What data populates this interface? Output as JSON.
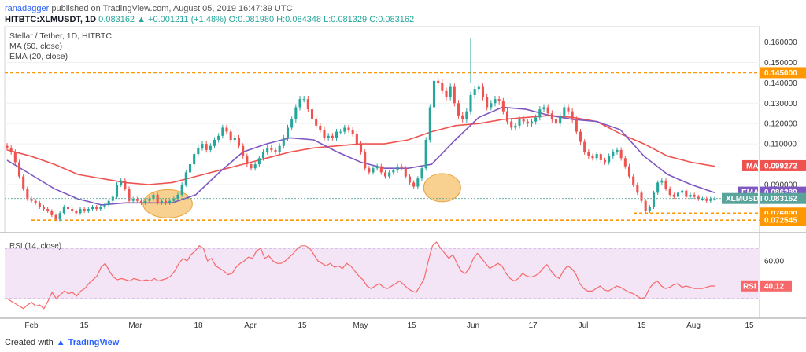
{
  "header": {
    "author": "ranadagger",
    "published": "published on TradingView.com, August 05, 2019 16:47:39 UTC",
    "symbol": "HITBTC:XLMUSDT, 1D",
    "change": "0.083162 ▲ +0.001211 (+1.48%)",
    "ohlc": "O:0.081980 H:0.084348 L:0.081329 C:0.083162"
  },
  "legend": {
    "title": "Stellar / Tether, 1D, HITBTC",
    "ma": "MA (50, close)",
    "ema": "EMA (20, close)"
  },
  "footer": {
    "created_with": "Created with",
    "brand": "TradingView"
  },
  "colors": {
    "up": "#26a69a",
    "down": "#ef5350",
    "ma": "#ef5350",
    "ema": "#7e57c2",
    "rsi_line": "#f7686a",
    "rsi_band": "#f3e5f5",
    "level": "#ff9800",
    "price": "#5aa39a"
  },
  "chart_data": [
    {
      "type": "candlestick",
      "title": "Stellar / Tether, 1D, HITBTC",
      "y_axis": {
        "ticks": [
          "0.160000",
          "0.150000",
          "0.140000",
          "0.130000",
          "0.120000",
          "0.110000",
          "0.090000"
        ],
        "ylim": [
          0.068,
          0.166
        ]
      },
      "x_axis": {
        "labels": [
          "Feb",
          "15",
          "Mar",
          "18",
          "Apr",
          "15",
          "May",
          "15",
          "Jun",
          "17",
          "Jul",
          "15",
          "Aug",
          "15"
        ]
      },
      "price_labels": {
        "resistance": "0.145000",
        "ma": "0.099272",
        "ema": "0.086289",
        "last": "0.083162",
        "symbol": "XLMUSDT",
        "support1": "0.076000",
        "support2": "0.072545",
        "ma_tag": "MA",
        "ema_tag": "EMA"
      },
      "levels": [
        0.145,
        0.076,
        0.072545
      ],
      "highlight_zones": [
        {
          "from_date": "2019-02-26",
          "to_date": "2019-03-07",
          "value": 0.0806
        },
        {
          "from_date": "2019-05-06",
          "to_date": "2019-05-12",
          "value": 0.0885
        }
      ],
      "start_date": "2019-01-22",
      "closes": [
        0.108,
        0.106,
        0.101,
        0.094,
        0.088,
        0.083,
        0.082,
        0.081,
        0.079,
        0.078,
        0.077,
        0.075,
        0.073,
        0.076,
        0.079,
        0.078,
        0.077,
        0.076,
        0.078,
        0.077,
        0.078,
        0.079,
        0.078,
        0.079,
        0.08,
        0.082,
        0.084,
        0.09,
        0.092,
        0.088,
        0.082,
        0.083,
        0.082,
        0.081,
        0.082,
        0.083,
        0.085,
        0.081,
        0.082,
        0.081,
        0.082,
        0.083,
        0.085,
        0.09,
        0.096,
        0.1,
        0.105,
        0.108,
        0.11,
        0.107,
        0.109,
        0.112,
        0.114,
        0.118,
        0.116,
        0.112,
        0.113,
        0.109,
        0.104,
        0.1,
        0.098,
        0.1,
        0.103,
        0.106,
        0.108,
        0.107,
        0.106,
        0.109,
        0.113,
        0.118,
        0.122,
        0.128,
        0.132,
        0.132,
        0.127,
        0.122,
        0.119,
        0.117,
        0.113,
        0.114,
        0.113,
        0.116,
        0.116,
        0.118,
        0.117,
        0.115,
        0.11,
        0.106,
        0.098,
        0.096,
        0.098,
        0.099,
        0.096,
        0.094,
        0.096,
        0.097,
        0.099,
        0.098,
        0.094,
        0.091,
        0.089,
        0.093,
        0.098,
        0.112,
        0.128,
        0.141,
        0.14,
        0.136,
        0.133,
        0.138,
        0.13,
        0.124,
        0.122,
        0.126,
        0.134,
        0.137,
        0.138,
        0.133,
        0.128,
        0.13,
        0.132,
        0.131,
        0.126,
        0.121,
        0.118,
        0.119,
        0.122,
        0.121,
        0.12,
        0.121,
        0.123,
        0.127,
        0.128,
        0.125,
        0.122,
        0.12,
        0.124,
        0.128,
        0.126,
        0.122,
        0.116,
        0.111,
        0.106,
        0.104,
        0.103,
        0.105,
        0.102,
        0.101,
        0.104,
        0.106,
        0.107,
        0.103,
        0.099,
        0.094,
        0.09,
        0.086,
        0.082,
        0.077,
        0.079,
        0.086,
        0.091,
        0.092,
        0.088,
        0.085,
        0.084,
        0.086,
        0.087,
        0.084,
        0.085,
        0.084,
        0.083,
        0.083,
        0.082,
        0.083,
        0.083
      ],
      "ma50": [
        0.107,
        0.104,
        0.1,
        0.095,
        0.093,
        0.091,
        0.09,
        0.091,
        0.094,
        0.097,
        0.1,
        0.103,
        0.106,
        0.108,
        0.109,
        0.11,
        0.11,
        0.112,
        0.116,
        0.119,
        0.12,
        0.122,
        0.123,
        0.124,
        0.123,
        0.121,
        0.115,
        0.11,
        0.104,
        0.101,
        0.099
      ],
      "ema20": [
        0.102,
        0.095,
        0.088,
        0.083,
        0.08,
        0.081,
        0.081,
        0.081,
        0.085,
        0.096,
        0.106,
        0.11,
        0.113,
        0.112,
        0.106,
        0.101,
        0.098,
        0.098,
        0.1,
        0.112,
        0.123,
        0.128,
        0.127,
        0.124,
        0.122,
        0.121,
        0.117,
        0.104,
        0.095,
        0.09,
        0.086
      ],
      "ma_labels_x": "evenly spaced over the candles"
    },
    {
      "type": "line",
      "title": "RSI (14, close)",
      "y_axis": {
        "ticks": [
          "60.00"
        ],
        "ylim": [
          20,
          80
        ]
      },
      "band": [
        30,
        70
      ],
      "last_label": "40.12",
      "tag": "RSI",
      "values": [
        30,
        28,
        26,
        24,
        22,
        25,
        27,
        24,
        25,
        22,
        28,
        35,
        30,
        33,
        36,
        34,
        35,
        32,
        36,
        38,
        42,
        45,
        48,
        55,
        58,
        52,
        47,
        45,
        46,
        45,
        44,
        46,
        45,
        44,
        45,
        44,
        46,
        44,
        45,
        46,
        48,
        52,
        58,
        62,
        60,
        65,
        68,
        72,
        70,
        60,
        62,
        56,
        54,
        52,
        49,
        50,
        55,
        58,
        60,
        63,
        62,
        68,
        70,
        62,
        64,
        60,
        58,
        58,
        60,
        63,
        66,
        70,
        72,
        72,
        70,
        65,
        60,
        58,
        56,
        58,
        55,
        56,
        54,
        58,
        56,
        52,
        48,
        45,
        40,
        38,
        40,
        42,
        39,
        38,
        40,
        42,
        44,
        41,
        38,
        36,
        35,
        40,
        46,
        60,
        72,
        75,
        70,
        66,
        62,
        65,
        58,
        52,
        50,
        54,
        62,
        66,
        62,
        58,
        54,
        56,
        58,
        56,
        50,
        46,
        44,
        46,
        50,
        48,
        47,
        48,
        50,
        54,
        57,
        52,
        48,
        46,
        52,
        56,
        54,
        50,
        42,
        38,
        36,
        36,
        38,
        40,
        37,
        36,
        38,
        40,
        39,
        37,
        35,
        34,
        32,
        30,
        31,
        38,
        42,
        44,
        40,
        38,
        39,
        41,
        42,
        39,
        40,
        39,
        38,
        38,
        38,
        39,
        40,
        40
      ]
    }
  ]
}
